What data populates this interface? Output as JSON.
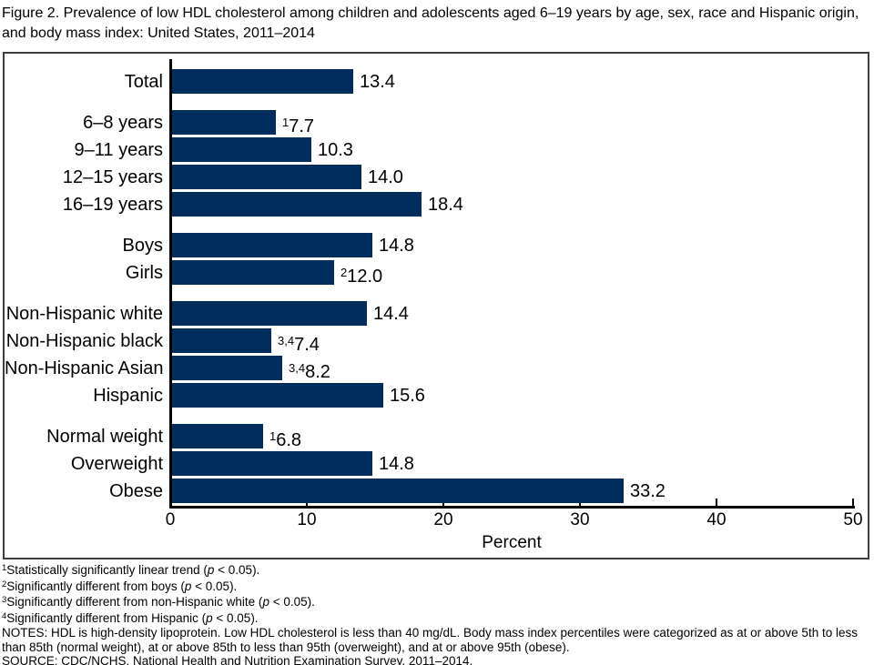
{
  "title": "Figure 2. Prevalence of low HDL cholesterol among children and adolescents aged 6–19 years by age, sex, race and Hispanic origin, and body mass index: United States, 2011–2014",
  "chart_data": {
    "type": "bar",
    "orientation": "horizontal",
    "xlabel": "Percent",
    "xlim": [
      0,
      50
    ],
    "xticks": [
      "0",
      "10",
      "20",
      "30",
      "40",
      "50"
    ],
    "grid": false,
    "bar_color": "#002d5e",
    "rows": [
      {
        "label": "Total",
        "value": 13.4,
        "display": "13.4",
        "sup": "",
        "group": 0
      },
      {
        "label": "6–8 years",
        "value": 7.7,
        "display": "7.7",
        "sup": "1",
        "group": 1
      },
      {
        "label": "9–11 years",
        "value": 10.3,
        "display": "10.3",
        "sup": "",
        "group": 1
      },
      {
        "label": "12–15 years",
        "value": 14.0,
        "display": "14.0",
        "sup": "",
        "group": 1
      },
      {
        "label": "16–19 years",
        "value": 18.4,
        "display": "18.4",
        "sup": "",
        "group": 1
      },
      {
        "label": "Boys",
        "value": 14.8,
        "display": "14.8",
        "sup": "",
        "group": 2
      },
      {
        "label": "Girls",
        "value": 12.0,
        "display": "12.0",
        "sup": "2",
        "group": 2
      },
      {
        "label": "Non-Hispanic white",
        "value": 14.4,
        "display": "14.4",
        "sup": "",
        "group": 3
      },
      {
        "label": "Non-Hispanic black",
        "value": 7.4,
        "display": "7.4",
        "sup": "3,4",
        "group": 3
      },
      {
        "label": "Non-Hispanic Asian",
        "value": 8.2,
        "display": "8.2",
        "sup": "3,4",
        "group": 3
      },
      {
        "label": "Hispanic",
        "value": 15.6,
        "display": "15.6",
        "sup": "",
        "group": 3
      },
      {
        "label": "Normal weight",
        "value": 6.8,
        "display": "6.8",
        "sup": "1",
        "group": 4
      },
      {
        "label": "Overweight",
        "value": 14.8,
        "display": "14.8",
        "sup": "",
        "group": 4
      },
      {
        "label": "Obese",
        "value": 33.2,
        "display": "33.2",
        "sup": "",
        "group": 4
      }
    ]
  },
  "footnotes": [
    {
      "sup": "1",
      "before": "Statistically significantly linear trend (",
      "italic": "p",
      "after": " < 0.05)."
    },
    {
      "sup": "2",
      "before": "Significantly different from boys (",
      "italic": "p",
      "after": " < 0.05)."
    },
    {
      "sup": "3",
      "before": "Significantly different from non-Hispanic white (",
      "italic": "p",
      "after": " < 0.05)."
    },
    {
      "sup": "4",
      "before": "Significantly different from Hispanic (",
      "italic": "p",
      "after": " < 0.05)."
    }
  ],
  "notes": "NOTES: HDL is high-density lipoprotein. Low HDL cholesterol is less than 40 mg/dL. Body mass index percentiles were categorized as at or above 5th to less than 85th (normal weight), at or above 85th to less than 95th (overweight), and at or above 95th (obese).",
  "source": "SOURCE: CDC/NCHS, National Health and Nutrition Examination Survey, 2011–2014."
}
